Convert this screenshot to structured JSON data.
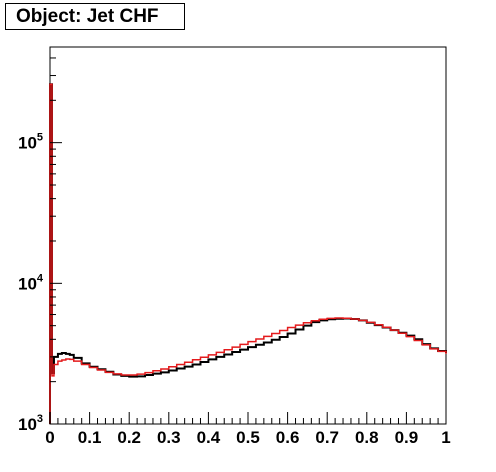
{
  "chart_data": {
    "type": "line",
    "title": "Object: Jet CHF",
    "xlim": [
      0,
      1
    ],
    "ylim_log10": [
      3,
      5.68
    ],
    "log_y": true,
    "grid": false,
    "x_tick_labels": [
      "0",
      "0.1",
      "0.2",
      "0.3",
      "0.4",
      "0.5",
      "0.6",
      "0.7",
      "0.8",
      "0.9",
      "1"
    ],
    "x_tick_values": [
      0,
      0.1,
      0.2,
      0.3,
      0.4,
      0.5,
      0.6,
      0.7,
      0.8,
      0.9,
      1
    ],
    "y_tick_labels": [
      {
        "base": "10",
        "exp": "3",
        "value": 1000
      },
      {
        "base": "10",
        "exp": "4",
        "value": 10000
      },
      {
        "base": "10",
        "exp": "5",
        "value": 100000
      }
    ],
    "series": [
      {
        "color": "#000000",
        "points": [
          [
            0.0,
            260000
          ],
          [
            0.005,
            2300
          ],
          [
            0.01,
            3000
          ],
          [
            0.02,
            3150
          ],
          [
            0.03,
            3200
          ],
          [
            0.04,
            3150
          ],
          [
            0.05,
            3100
          ],
          [
            0.06,
            2950
          ],
          [
            0.08,
            2700
          ],
          [
            0.1,
            2550
          ],
          [
            0.12,
            2450
          ],
          [
            0.14,
            2350
          ],
          [
            0.16,
            2250
          ],
          [
            0.18,
            2200
          ],
          [
            0.2,
            2170
          ],
          [
            0.22,
            2180
          ],
          [
            0.24,
            2230
          ],
          [
            0.26,
            2280
          ],
          [
            0.28,
            2330
          ],
          [
            0.3,
            2400
          ],
          [
            0.32,
            2480
          ],
          [
            0.34,
            2560
          ],
          [
            0.36,
            2650
          ],
          [
            0.38,
            2760
          ],
          [
            0.4,
            2880
          ],
          [
            0.42,
            3000
          ],
          [
            0.44,
            3120
          ],
          [
            0.46,
            3250
          ],
          [
            0.48,
            3380
          ],
          [
            0.5,
            3520
          ],
          [
            0.52,
            3660
          ],
          [
            0.54,
            3800
          ],
          [
            0.56,
            3970
          ],
          [
            0.58,
            4150
          ],
          [
            0.6,
            4400
          ],
          [
            0.62,
            4700
          ],
          [
            0.64,
            5000
          ],
          [
            0.66,
            5300
          ],
          [
            0.68,
            5450
          ],
          [
            0.7,
            5550
          ],
          [
            0.72,
            5600
          ],
          [
            0.74,
            5620
          ],
          [
            0.76,
            5580
          ],
          [
            0.78,
            5450
          ],
          [
            0.8,
            5250
          ],
          [
            0.82,
            5050
          ],
          [
            0.84,
            4850
          ],
          [
            0.86,
            4650
          ],
          [
            0.88,
            4450
          ],
          [
            0.9,
            4250
          ],
          [
            0.92,
            4000
          ],
          [
            0.94,
            3700
          ],
          [
            0.96,
            3450
          ],
          [
            0.98,
            3300
          ],
          [
            1.0,
            3200
          ]
        ]
      },
      {
        "color": "#e41a1c",
        "points": [
          [
            0.0,
            260000
          ],
          [
            0.005,
            2200
          ],
          [
            0.01,
            2650
          ],
          [
            0.02,
            2800
          ],
          [
            0.03,
            2850
          ],
          [
            0.04,
            2900
          ],
          [
            0.05,
            2880
          ],
          [
            0.06,
            2800
          ],
          [
            0.08,
            2650
          ],
          [
            0.1,
            2520
          ],
          [
            0.12,
            2420
          ],
          [
            0.14,
            2330
          ],
          [
            0.16,
            2270
          ],
          [
            0.18,
            2230
          ],
          [
            0.2,
            2230
          ],
          [
            0.22,
            2260
          ],
          [
            0.24,
            2320
          ],
          [
            0.26,
            2390
          ],
          [
            0.28,
            2460
          ],
          [
            0.3,
            2550
          ],
          [
            0.32,
            2650
          ],
          [
            0.34,
            2750
          ],
          [
            0.36,
            2860
          ],
          [
            0.38,
            2980
          ],
          [
            0.4,
            3100
          ],
          [
            0.42,
            3230
          ],
          [
            0.44,
            3370
          ],
          [
            0.46,
            3520
          ],
          [
            0.48,
            3680
          ],
          [
            0.5,
            3850
          ],
          [
            0.52,
            4020
          ],
          [
            0.54,
            4200
          ],
          [
            0.56,
            4400
          ],
          [
            0.58,
            4620
          ],
          [
            0.6,
            4850
          ],
          [
            0.62,
            5050
          ],
          [
            0.64,
            5250
          ],
          [
            0.66,
            5420
          ],
          [
            0.68,
            5550
          ],
          [
            0.7,
            5630
          ],
          [
            0.72,
            5670
          ],
          [
            0.74,
            5650
          ],
          [
            0.76,
            5580
          ],
          [
            0.78,
            5450
          ],
          [
            0.8,
            5280
          ],
          [
            0.82,
            5080
          ],
          [
            0.84,
            4870
          ],
          [
            0.86,
            4650
          ],
          [
            0.88,
            4420
          ],
          [
            0.9,
            4180
          ],
          [
            0.92,
            3920
          ],
          [
            0.94,
            3650
          ],
          [
            0.96,
            3420
          ],
          [
            0.98,
            3280
          ],
          [
            1.0,
            3150
          ]
        ]
      }
    ]
  }
}
